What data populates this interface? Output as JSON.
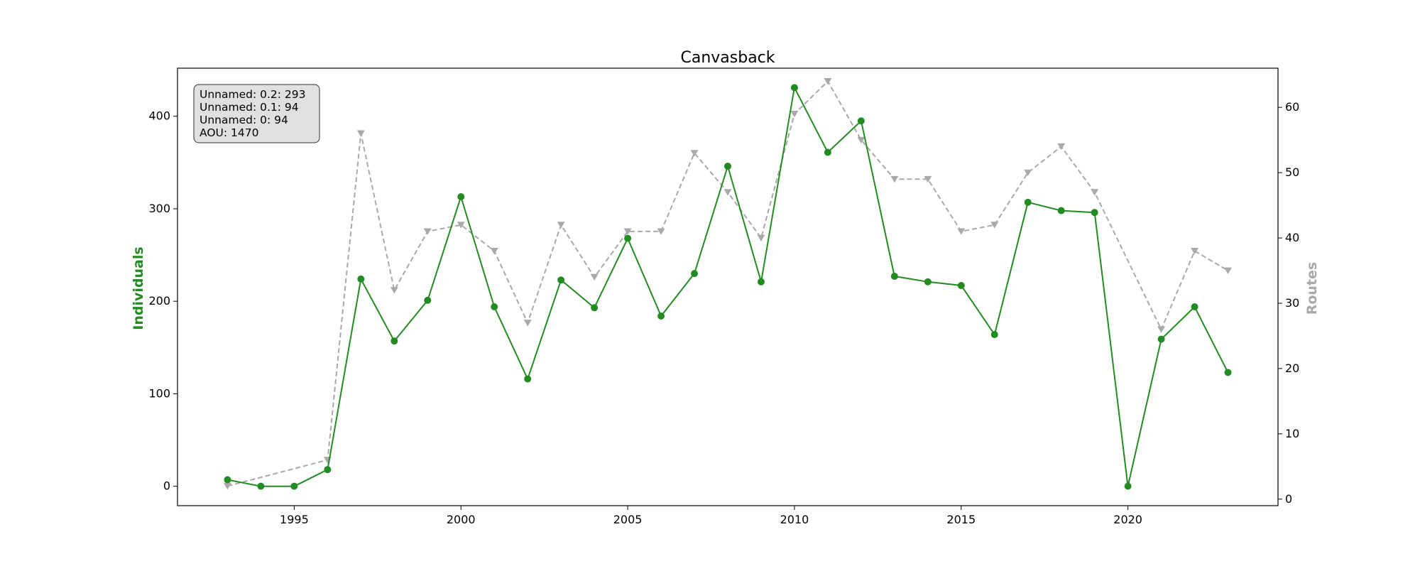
{
  "chart_data": {
    "type": "line",
    "title": "Canvasback",
    "xlabel": "",
    "ylabel": "Individuals",
    "y2label": "Routes",
    "xlim": [
      1991.5,
      2024.5
    ],
    "ylim": [
      -21,
      452
    ],
    "y2lim": [
      -1,
      66
    ],
    "xticks": [
      1995,
      2000,
      2005,
      2010,
      2015,
      2020
    ],
    "yticks": [
      0,
      100,
      200,
      300,
      400
    ],
    "y2ticks": [
      0,
      10,
      20,
      30,
      40,
      50,
      60
    ],
    "grid": false,
    "x": [
      1993,
      1994,
      1995,
      1996,
      1997,
      1998,
      1999,
      2000,
      2001,
      2002,
      2003,
      2004,
      2005,
      2006,
      2007,
      2008,
      2009,
      2010,
      2011,
      2012,
      2013,
      2014,
      2015,
      2016,
      2017,
      2018,
      2019,
      2020,
      2021,
      2022,
      2023
    ],
    "series": [
      {
        "axis": "left",
        "color": "#228b22",
        "marker": "circle",
        "linestyle": "solid",
        "points": [
          [
            1993,
            7
          ],
          [
            1994,
            0
          ],
          [
            1995,
            0
          ],
          [
            1996,
            18
          ],
          [
            1997,
            224
          ],
          [
            1998,
            157
          ],
          [
            1999,
            201
          ],
          [
            2000,
            313
          ],
          [
            2001,
            194
          ],
          [
            2002,
            116
          ],
          [
            2003,
            223
          ],
          [
            2004,
            193
          ],
          [
            2005,
            268
          ],
          [
            2006,
            184
          ],
          [
            2007,
            230
          ],
          [
            2008,
            346
          ],
          [
            2009,
            221
          ],
          [
            2010,
            431
          ],
          [
            2011,
            361
          ],
          [
            2012,
            395
          ],
          [
            2013,
            227
          ],
          [
            2014,
            221
          ],
          [
            2015,
            217
          ],
          [
            2016,
            164
          ],
          [
            2017,
            307
          ],
          [
            2018,
            298
          ],
          [
            2019,
            296
          ],
          [
            2020,
            0
          ],
          [
            2021,
            159
          ],
          [
            2022,
            194
          ],
          [
            2023,
            123
          ]
        ]
      },
      {
        "axis": "right",
        "color": "#a9a9a9",
        "marker": "triangle-down",
        "linestyle": "dashed",
        "points": [
          [
            1993,
            2
          ],
          [
            1996,
            6
          ],
          [
            1997,
            56
          ],
          [
            1998,
            32
          ],
          [
            1999,
            41
          ],
          [
            2000,
            42
          ],
          [
            2001,
            38
          ],
          [
            2002,
            27
          ],
          [
            2003,
            42
          ],
          [
            2004,
            34
          ],
          [
            2005,
            41
          ],
          [
            2006,
            41
          ],
          [
            2007,
            53
          ],
          [
            2008,
            47
          ],
          [
            2009,
            40
          ],
          [
            2010,
            59
          ],
          [
            2011,
            64
          ],
          [
            2012,
            55
          ],
          [
            2013,
            49
          ],
          [
            2014,
            49
          ],
          [
            2015,
            41
          ],
          [
            2016,
            42
          ],
          [
            2017,
            50
          ],
          [
            2018,
            54
          ],
          [
            2019,
            47
          ],
          [
            2021,
            26
          ],
          [
            2022,
            38
          ],
          [
            2023,
            35
          ]
        ]
      }
    ],
    "infobox": {
      "placement": "top-left",
      "lines": [
        "Unnamed: 0.2: 293",
        "Unnamed: 0.1: 94",
        "Unnamed: 0: 94",
        "AOU: 1470"
      ]
    }
  }
}
